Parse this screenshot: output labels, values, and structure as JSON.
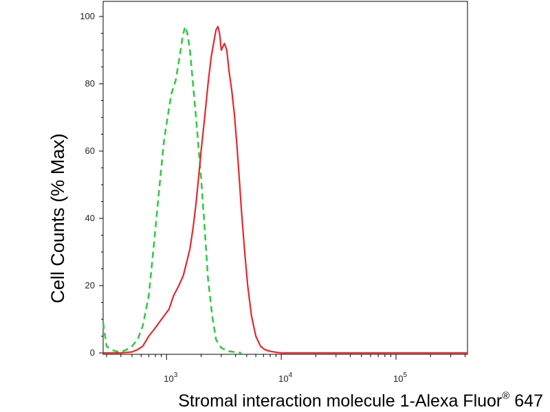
{
  "chart_data": {
    "type": "line",
    "title": "",
    "ylabel": "Cell Counts (% Max)",
    "xlabel": {
      "main": "Stromal interaction molecule 1-Alexa Fluor",
      "superscript": "®",
      "suffix": " 647"
    },
    "x_scale": "log",
    "xlim": [
      280,
      420000
    ],
    "ylim": [
      0,
      102
    ],
    "y_ticks": [
      "0",
      "20",
      "40",
      "60",
      "80",
      "100"
    ],
    "y_tick_values": [
      0,
      20,
      40,
      60,
      80,
      100
    ],
    "x_ticks": [
      {
        "value": 1000,
        "base": "10",
        "exp": "3"
      },
      {
        "value": 10000,
        "base": "10",
        "exp": "4"
      },
      {
        "value": 100000,
        "base": "10",
        "exp": "5"
      }
    ],
    "grid": false,
    "legend": "none",
    "series": [
      {
        "color": "#2ecc40",
        "style": "dashed",
        "x": [
          280,
          300,
          330,
          360,
          400,
          450,
          500,
          560,
          620,
          700,
          780,
          870,
          950,
          1020,
          1100,
          1200,
          1300,
          1380,
          1450,
          1520,
          1600,
          1700,
          1850,
          2000,
          2150,
          2300,
          2500,
          2700,
          3000,
          3500,
          4500
        ],
        "y": [
          9,
          2,
          1,
          0.5,
          0.3,
          1,
          2,
          4,
          8,
          17,
          33,
          50,
          63,
          70,
          77,
          81,
          88,
          94,
          97,
          95,
          90,
          80,
          66,
          52,
          37,
          22,
          11,
          4,
          1.5,
          0.5,
          0
        ]
      },
      {
        "color": "#e8262a",
        "style": "solid",
        "x": [
          280,
          400,
          500,
          560,
          620,
          700,
          780,
          860,
          950,
          1050,
          1150,
          1280,
          1400,
          1500,
          1600,
          1700,
          1800,
          1900,
          2000,
          2150,
          2300,
          2450,
          2600,
          2700,
          2800,
          2900,
          3000,
          3100,
          3200,
          3350,
          3500,
          3700,
          3900,
          4100,
          4300,
          4500,
          4800,
          5100,
          5500,
          6000,
          6600,
          7200,
          8000,
          9000,
          10000,
          13000,
          420000
        ],
        "y": [
          0,
          0,
          0.3,
          1,
          2,
          5,
          7,
          9,
          11,
          13,
          17,
          20,
          23,
          27,
          31,
          37,
          44,
          52,
          60,
          70,
          80,
          88,
          93,
          96,
          97,
          95,
          90,
          91,
          92,
          90,
          84,
          78,
          71,
          62,
          52,
          42,
          30,
          20,
          11,
          5,
          2,
          1,
          0.5,
          0.2,
          0,
          0,
          0
        ]
      }
    ]
  }
}
